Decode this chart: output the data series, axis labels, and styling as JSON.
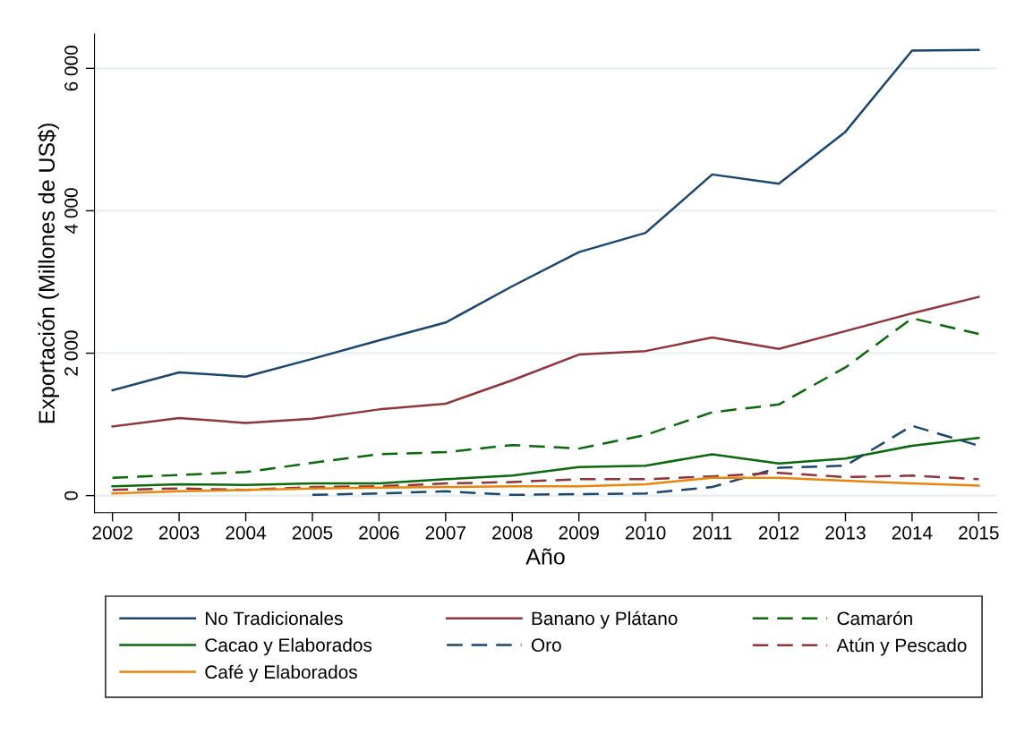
{
  "chart_data": {
    "type": "line",
    "xlabel": "Año",
    "ylabel": "Exportación (Millones de US$)",
    "x": [
      2002,
      2003,
      2004,
      2005,
      2006,
      2007,
      2008,
      2009,
      2010,
      2011,
      2012,
      2013,
      2014,
      2015
    ],
    "xlim": [
      2001.73,
      2015.27
    ],
    "xticks": [
      2002,
      2003,
      2004,
      2005,
      2006,
      2007,
      2008,
      2009,
      2010,
      2011,
      2012,
      2013,
      2014,
      2015
    ],
    "ylim": [
      -240,
      6480
    ],
    "yticks": [
      0,
      {
        "value": 2000,
        "label": "2 000"
      },
      {
        "value": 4000,
        "label": "4 000"
      },
      {
        "value": 6000,
        "label": "6 000"
      }
    ],
    "grid": "y",
    "legend": "bottom",
    "series": [
      {
        "name": "No Tradicionales",
        "color": "#1a476f",
        "line_style": "solid",
        "values": [
          1480,
          1730,
          1670,
          1920,
          2180,
          2430,
          2940,
          3420,
          3690,
          4510,
          4380,
          5110,
          6250,
          6260
        ]
      },
      {
        "name": "Banano y Plátano",
        "color": "#90353b",
        "line_style": "solid",
        "values": [
          970,
          1090,
          1020,
          1080,
          1210,
          1290,
          1620,
          1980,
          2030,
          2220,
          2060,
          2310,
          2560,
          2790
        ]
      },
      {
        "name": "Camarón",
        "color": "#0a6a0a",
        "line_style": "dashed",
        "values": [
          250,
          290,
          330,
          460,
          580,
          610,
          710,
          660,
          850,
          1170,
          1280,
          1800,
          2490,
          2270
        ]
      },
      {
        "name": "Cacao y Elaborados",
        "color": "#0a6a0a",
        "line_style": "solid",
        "values": [
          130,
          160,
          150,
          170,
          170,
          230,
          280,
          400,
          420,
          580,
          450,
          520,
          700,
          810
        ]
      },
      {
        "name": "Oro",
        "color": "#1a476f",
        "line_style": "dashed",
        "values": [
          null,
          null,
          null,
          10,
          30,
          60,
          10,
          20,
          30,
          120,
          390,
          420,
          980,
          700
        ]
      },
      {
        "name": "Atún y Pescado",
        "color": "#90353b",
        "line_style": "dashed",
        "values": [
          80,
          100,
          80,
          120,
          130,
          170,
          190,
          230,
          230,
          270,
          320,
          260,
          280,
          230
        ]
      },
      {
        "name": "Café y Elaborados",
        "color": "#e8850c",
        "line_style": "solid",
        "values": [
          30,
          60,
          80,
          100,
          110,
          120,
          130,
          130,
          160,
          250,
          250,
          210,
          170,
          140
        ]
      }
    ]
  }
}
